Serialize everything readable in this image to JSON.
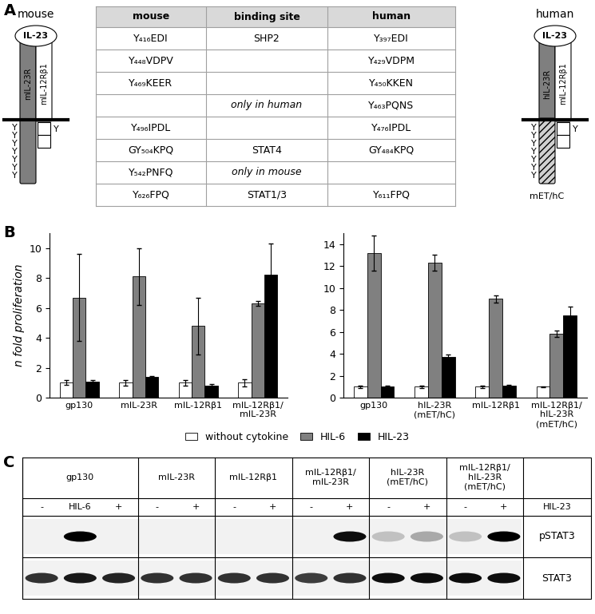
{
  "panel_labels": [
    "A",
    "B",
    "C"
  ],
  "diagram": {
    "mouse": {
      "title": "mouse",
      "ligand": "IL-23",
      "receptor_a": "mIL-23R",
      "receptor_b": "mIL-12Rβ1",
      "tyrosines_a": [
        "Y",
        "Y",
        "Y",
        "Y",
        "Y",
        "Y",
        "Y"
      ],
      "tyrosines_b": [
        "Y"
      ]
    },
    "human": {
      "title": "human",
      "ligand": "IL-23",
      "receptor_a": "hIL-23R",
      "receptor_b": "mIL-12Rβ1",
      "tyrosines_a": [
        "Y",
        "Y",
        "Y",
        "Y",
        "Y",
        "Y",
        "Y"
      ],
      "tyrosines_b": [
        "Y"
      ],
      "intracellular": "mET/hC"
    }
  },
  "table": {
    "header": [
      "mouse",
      "binding site",
      "human"
    ],
    "rows": [
      [
        "Y₄₁₆EDI",
        "SHP2",
        "Y₃₉₇EDI"
      ],
      [
        "Y₄₄₈VDPV",
        null,
        "Y₄₂₉VDPM"
      ],
      [
        "Y₄₆₉KEER",
        null,
        "Y₄₅₀KKEN"
      ],
      [
        null,
        "only in human",
        "Y₄₆₃PQNS"
      ],
      [
        "Y₄₉₆IPDL",
        null,
        "Y₄₇₆IPDL"
      ],
      [
        "GY₅₀₄KPQ",
        "STAT4",
        "GY₄₈₄KPQ"
      ],
      [
        "Y₅₄₂PNFQ",
        "only in mouse",
        null
      ],
      [
        "Y₆₂₆FPQ",
        "STAT1/3",
        "Y₆₁₁FPQ"
      ]
    ]
  },
  "chart_data": [
    {
      "type": "bar",
      "y_label": "n fold proliferation",
      "legend": "lower center",
      "categories": [
        "gp130",
        "mIL-23R",
        "mIL-12Rβ1",
        "mIL-12Rβ1/\nmIL-23R"
      ],
      "series": [
        {
          "name": "without cytokine",
          "color": "#ffffff",
          "values": [
            1.0,
            1.0,
            1.0,
            1.0
          ],
          "errors": [
            0.15,
            0.2,
            0.2,
            0.25
          ]
        },
        {
          "name": "HIL-6",
          "color": "#808080",
          "values": [
            6.7,
            8.1,
            4.8,
            6.3
          ],
          "errors": [
            2.9,
            1.9,
            1.9,
            0.15
          ]
        },
        {
          "name": "HIL-23",
          "color": "#000000",
          "values": [
            1.05,
            1.4,
            0.8,
            8.2
          ],
          "errors": [
            0.1,
            0.05,
            0.1,
            2.1
          ]
        }
      ],
      "ylim": [
        0,
        11
      ],
      "yticks": [
        0,
        2,
        4,
        6,
        8,
        10
      ]
    },
    {
      "type": "bar",
      "categories": [
        "gp130",
        "hIL-23R\n(mET/hC)",
        "mIL-12Rβ1",
        "mIL-12Rβ1/\nhIL-23R\n(mET/hC)"
      ],
      "series": [
        {
          "name": "without cytokine",
          "color": "#ffffff",
          "values": [
            1.0,
            1.0,
            1.0,
            1.0
          ],
          "errors": [
            0.1,
            0.1,
            0.1,
            0.05
          ]
        },
        {
          "name": "HIL-6",
          "color": "#808080",
          "values": [
            13.2,
            12.3,
            9.0,
            5.8
          ],
          "errors": [
            1.6,
            0.7,
            0.3,
            0.3
          ]
        },
        {
          "name": "HIL-23",
          "color": "#000000",
          "values": [
            1.0,
            3.7,
            1.1,
            7.5
          ],
          "errors": [
            0.1,
            0.2,
            0.05,
            0.8
          ]
        }
      ],
      "ylim": [
        0,
        15
      ],
      "yticks": [
        0,
        2,
        4,
        6,
        8,
        10,
        12,
        14
      ]
    }
  ],
  "blot": {
    "treatment": "HIL-23",
    "groups": [
      {
        "name": "gp130",
        "lanes": [
          "-",
          "HIL-6",
          "+"
        ]
      },
      {
        "name": "mIL-23R",
        "lanes": [
          "-",
          "+"
        ]
      },
      {
        "name": "mIL-12Rβ1",
        "lanes": [
          "-",
          "+"
        ]
      },
      {
        "name": "mIL-12Rβ1/\nmIL-23R",
        "lanes": [
          "-",
          "+"
        ]
      },
      {
        "name": "hIL-23R\n(mET/hC)",
        "lanes": [
          "-",
          "+"
        ]
      },
      {
        "name": "mIL-12Rβ1/\nhIL-23R\n(mET/hC)",
        "lanes": [
          "-",
          "+"
        ]
      }
    ],
    "rows": [
      {
        "name": "pSTAT3",
        "band_intensity": [
          0,
          1.0,
          0,
          0,
          0,
          0,
          0,
          0,
          0.95,
          0.2,
          0.3,
          0.2,
          1.0
        ]
      },
      {
        "name": "STAT3",
        "band_intensity": [
          0.8,
          0.9,
          0.85,
          0.8,
          0.8,
          0.8,
          0.8,
          0.75,
          0.8,
          0.95,
          0.95,
          0.95,
          0.95
        ]
      }
    ]
  }
}
